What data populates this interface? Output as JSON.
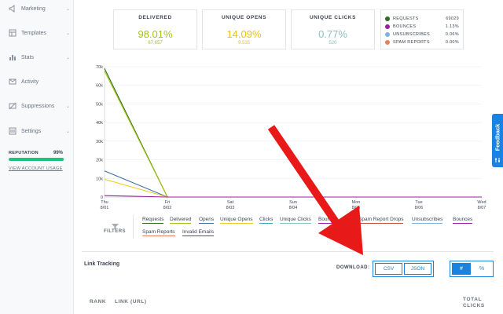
{
  "sidebar": {
    "items": [
      {
        "label": "Marketing",
        "icon": "megaphone-icon"
      },
      {
        "label": "Templates",
        "icon": "templates-icon"
      },
      {
        "label": "Stats",
        "icon": "stats-icon"
      },
      {
        "label": "Activity",
        "icon": "activity-icon"
      },
      {
        "label": "Suppressions",
        "icon": "suppressions-icon"
      },
      {
        "label": "Settings",
        "icon": "settings-icon"
      }
    ],
    "reputation_label": "REPUTATION",
    "reputation_value": "99%",
    "reputation_fraction": 0.99,
    "view_account_usage": "VIEW ACCOUNT USAGE"
  },
  "stats": {
    "delivered": {
      "title": "DELIVERED",
      "percent": "98.01%",
      "count": "67,657",
      "color": "#a3c515"
    },
    "unique_opens": {
      "title": "UNIQUE OPENS",
      "percent": "14.09%",
      "count": "9,535",
      "color": "#f0cc1c"
    },
    "unique_clicks": {
      "title": "UNIQUE CLICKS",
      "percent": "0.77%",
      "count": "520",
      "color": "#8bc0c4"
    }
  },
  "legend": [
    {
      "name": "REQUESTS",
      "value": "69029",
      "color": "#2e6b1e"
    },
    {
      "name": "BOUNCES",
      "value": "1.13%",
      "color": "#9b1fa1"
    },
    {
      "name": "UNSUBSCRIBES",
      "value": "0.06%",
      "color": "#7fb3de"
    },
    {
      "name": "SPAM REPORTS",
      "value": "0.00%",
      "color": "#e1845c"
    }
  ],
  "chart_data": {
    "type": "line",
    "x": [
      [
        "Thu",
        "8/01"
      ],
      [
        "Fri",
        "8/02"
      ],
      [
        "Sat",
        "8/03"
      ],
      [
        "Sun",
        "8/04"
      ],
      [
        "Mon",
        "8/05"
      ],
      [
        "Tue",
        "8/06"
      ],
      [
        "Wed",
        "8/07"
      ]
    ],
    "y_ticks": [
      "0",
      "10k",
      "20k",
      "30k",
      "40k",
      "50k",
      "60k",
      "70k"
    ],
    "ylim": [
      0,
      70000
    ],
    "grid": true,
    "series": [
      {
        "values": [
          69029,
          0,
          0,
          0,
          0,
          0,
          0
        ],
        "color": "#2e6b1e"
      },
      {
        "values": [
          67657,
          0,
          0,
          0,
          0,
          0,
          0
        ],
        "color": "#a3c515"
      },
      {
        "values": [
          14000,
          0,
          0,
          0,
          0,
          0,
          0
        ],
        "color": "#3f6ea8"
      },
      {
        "values": [
          9535,
          0,
          0,
          0,
          0,
          0,
          0
        ],
        "color": "#f0cc1c"
      },
      {
        "values": [
          780,
          0,
          0,
          0,
          0,
          0,
          0
        ],
        "color": "#9b1fa1"
      }
    ]
  },
  "filters": {
    "label": "FILTERS",
    "items": [
      {
        "label": "Requests",
        "color": "#2e6b1e"
      },
      {
        "label": "Delivered",
        "color": "#a3c515"
      },
      {
        "label": "Opens",
        "color": "#3f6ea8"
      },
      {
        "label": "Unique Opens",
        "color": "#f0cc1c"
      },
      {
        "label": "Clicks",
        "color": "#3aa3b0"
      },
      {
        "label": "Unique Clicks",
        "color": "#8bc0c4"
      },
      {
        "label": "Bounces",
        "color": "#9b1fa1"
      },
      {
        "label": "Spam Report Drops",
        "color": "#c14e3a"
      },
      {
        "label": "Unsubscribes",
        "color": "#7fb3de"
      },
      {
        "label": "Bounces",
        "color": "#9b1fa1"
      },
      {
        "label": "Spam Reports",
        "color": "#e1845c"
      },
      {
        "label": "Invalid Emails",
        "color": "#555555"
      }
    ]
  },
  "link_tracking": {
    "title": "Link Tracking",
    "download_label": "DOWNLOAD:",
    "csv": "CSV",
    "json": "JSON",
    "toggle_count": "#",
    "toggle_percent": "%",
    "columns": {
      "rank": "RANK",
      "link": "LINK (URL)",
      "total_clicks_1": "TOTAL",
      "total_clicks_2": "CLICKS"
    }
  },
  "feedback": {
    "label": "Feedback"
  }
}
